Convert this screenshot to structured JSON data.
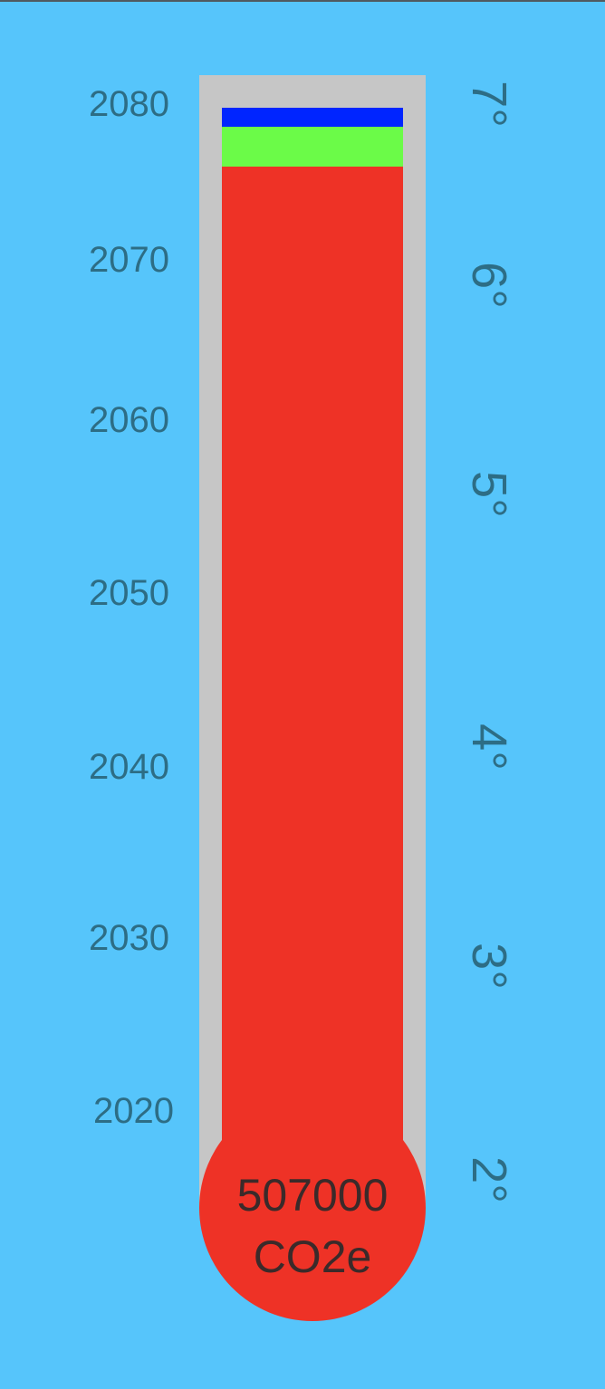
{
  "thermometer": {
    "years": [
      "2080",
      "2070",
      "2060",
      "2050",
      "2040",
      "2030",
      "2020"
    ],
    "degrees": [
      "7°",
      "6°",
      "5°",
      "4°",
      "3°",
      "2°"
    ],
    "emissions_value": "507000",
    "emissions_unit": "CO2e",
    "colors": {
      "background": "#56c5fb",
      "tube": "#c6c6c6",
      "fill_red": "#ee3226",
      "fill_green": "#6bfb48",
      "fill_blue": "#0025ff",
      "label": "#2d6d85"
    }
  }
}
